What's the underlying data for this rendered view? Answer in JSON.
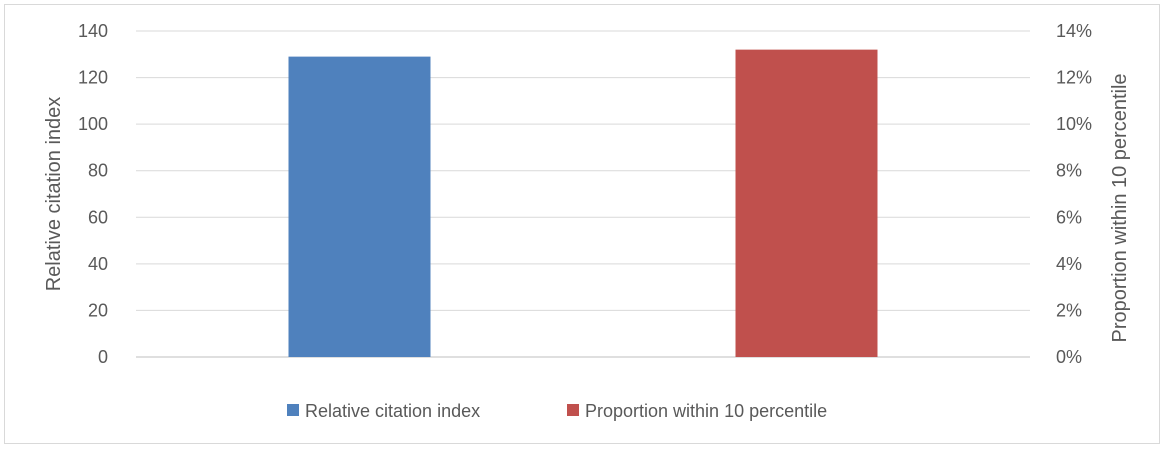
{
  "chart_data": {
    "type": "bar",
    "categories": [
      "",
      ""
    ],
    "series": [
      {
        "name": "Relative citation index",
        "values": [
          129,
          null
        ],
        "axis": "left",
        "color": "#4f81bd"
      },
      {
        "name": "Proportion within 10 percentile",
        "values": [
          null,
          0.132
        ],
        "axis": "right",
        "color": "#c0504d"
      }
    ],
    "ylabel": "Relative citation index",
    "y2label": "Proportion within 10 percentile",
    "ylim": [
      0,
      140
    ],
    "y2lim": [
      0,
      0.14
    ],
    "yticks": [
      "0",
      "20",
      "40",
      "60",
      "80",
      "100",
      "120",
      "140"
    ],
    "y2ticks": [
      "0%",
      "2%",
      "4%",
      "6%",
      "8%",
      "10%",
      "12%",
      "14%"
    ],
    "grid": true,
    "legend": "bottom",
    "title": ""
  }
}
